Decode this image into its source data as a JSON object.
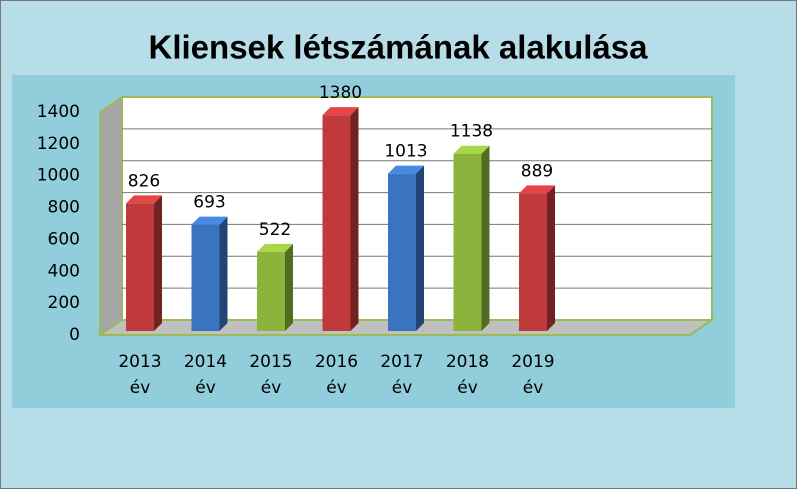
{
  "chart_data": {
    "type": "bar3d",
    "title": "Kliensek létszámának alakulása",
    "categories": [
      "2013 év",
      "2014 év",
      "2015 év",
      "2016 év",
      "2017 év",
      "2018 év",
      "2019 év"
    ],
    "values": [
      826,
      693,
      522,
      1380,
      1013,
      1138,
      889
    ],
    "colors": [
      "#c0393b",
      "#3a73c0",
      "#8cb33c",
      "#c0393b",
      "#3a73c0",
      "#8cb33c",
      "#c0393b"
    ],
    "ylim": [
      0,
      1400
    ],
    "yticks": [
      0,
      200,
      400,
      600,
      800,
      1000,
      1200,
      1400
    ],
    "grid": true
  }
}
